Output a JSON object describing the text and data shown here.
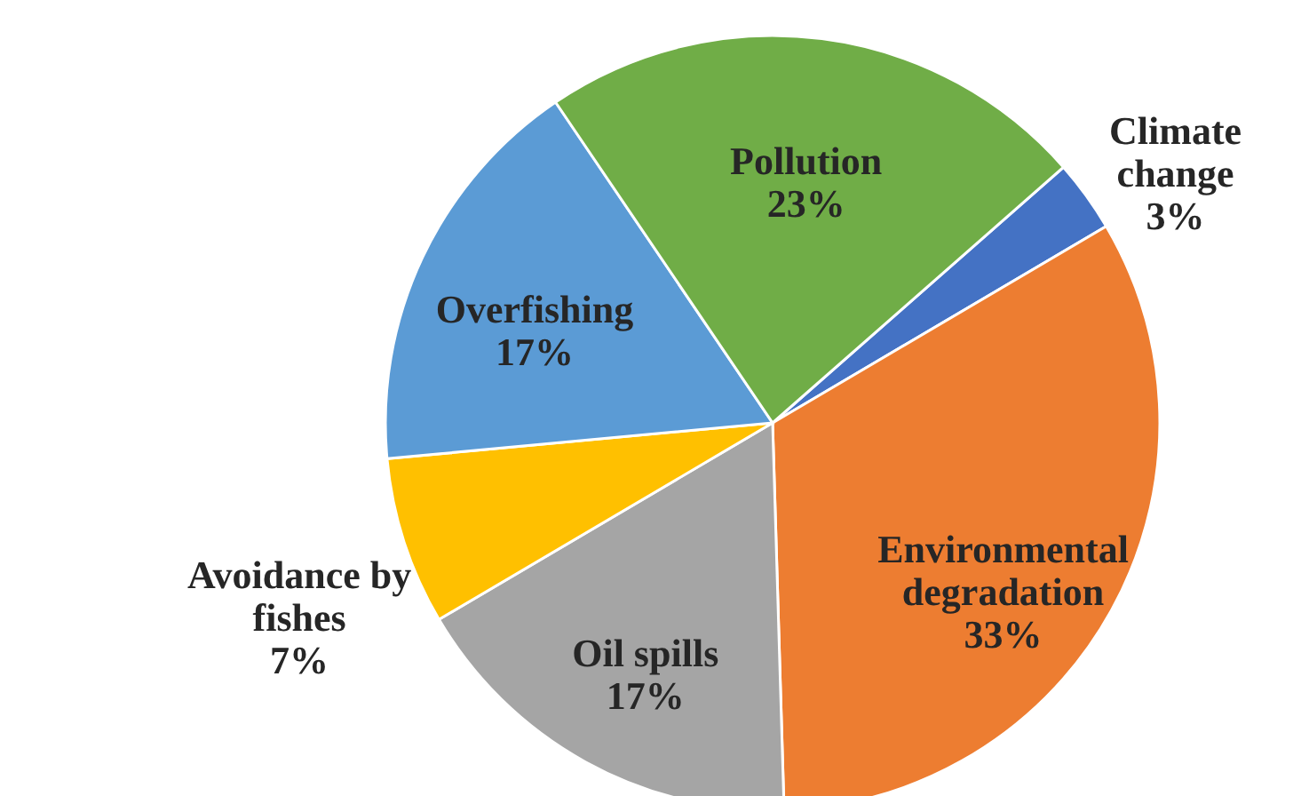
{
  "chart_data": {
    "type": "pie",
    "categories": [
      "Climate change",
      "Environmental degradation",
      "Oil spills",
      "Avoidance by fishes",
      "Overfishing",
      "Pollution"
    ],
    "values": [
      3,
      33,
      17,
      7,
      17,
      23
    ],
    "colors": [
      "#4472c4",
      "#ed7d31",
      "#a5a5a5",
      "#ffc000",
      "#5b9bd5",
      "#70ad47"
    ],
    "value_labels": [
      "3%",
      "33%",
      "17%",
      "7%",
      "17%",
      "23%"
    ]
  }
}
